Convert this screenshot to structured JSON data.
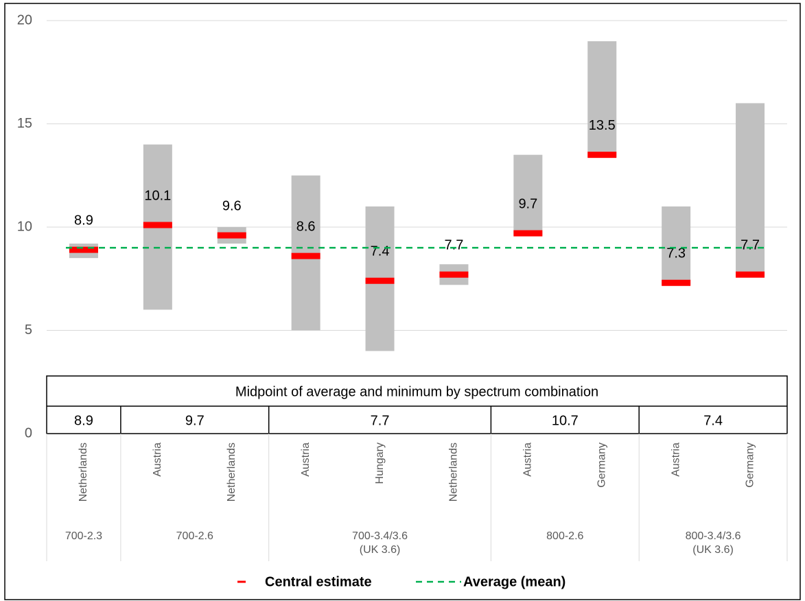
{
  "chart_data": {
    "type": "floating-bar",
    "groups": [
      {
        "name": "700-2.3",
        "categories": [
          "Netherlands"
        ],
        "midpoint": 8.9
      },
      {
        "name": "700-2.6",
        "categories": [
          "Austria",
          "Netherlands"
        ],
        "midpoint": 9.7
      },
      {
        "name": "700-3.4/3.6\n(UK 3.6)",
        "categories": [
          "Austria",
          "Hungary",
          "Netherlands"
        ],
        "midpoint": 7.7
      },
      {
        "name": "800-2.6",
        "categories": [
          "Austria",
          "Germany"
        ],
        "midpoint": 10.7
      },
      {
        "name": "800-3.4/3.6\n(UK 3.6)",
        "categories": [
          "Austria",
          "Germany"
        ],
        "midpoint": 7.4
      }
    ],
    "low": [
      8.5,
      6,
      9.2,
      5,
      4,
      7.2,
      9.6,
      13.4,
      7.2,
      7.6
    ],
    "high": [
      9.2,
      14,
      10,
      12.5,
      11,
      8.2,
      13.5,
      19,
      11,
      16
    ],
    "range_color": "#c0c0c0",
    "series": [
      {
        "name": "Central estimate",
        "color": "#ff0000",
        "values": [
          8.9,
          10.1,
          9.6,
          8.6,
          7.4,
          7.7,
          9.7,
          13.5,
          7.3,
          7.7
        ]
      }
    ],
    "average": {
      "name": "Average (mean)",
      "value": 9,
      "color": "#00b050"
    },
    "table_title": "Midpoint of average and minimum by spectrum combination",
    "ylim": [
      0,
      20
    ],
    "yticks": [
      0,
      5,
      10,
      15,
      20
    ],
    "grid": true
  }
}
